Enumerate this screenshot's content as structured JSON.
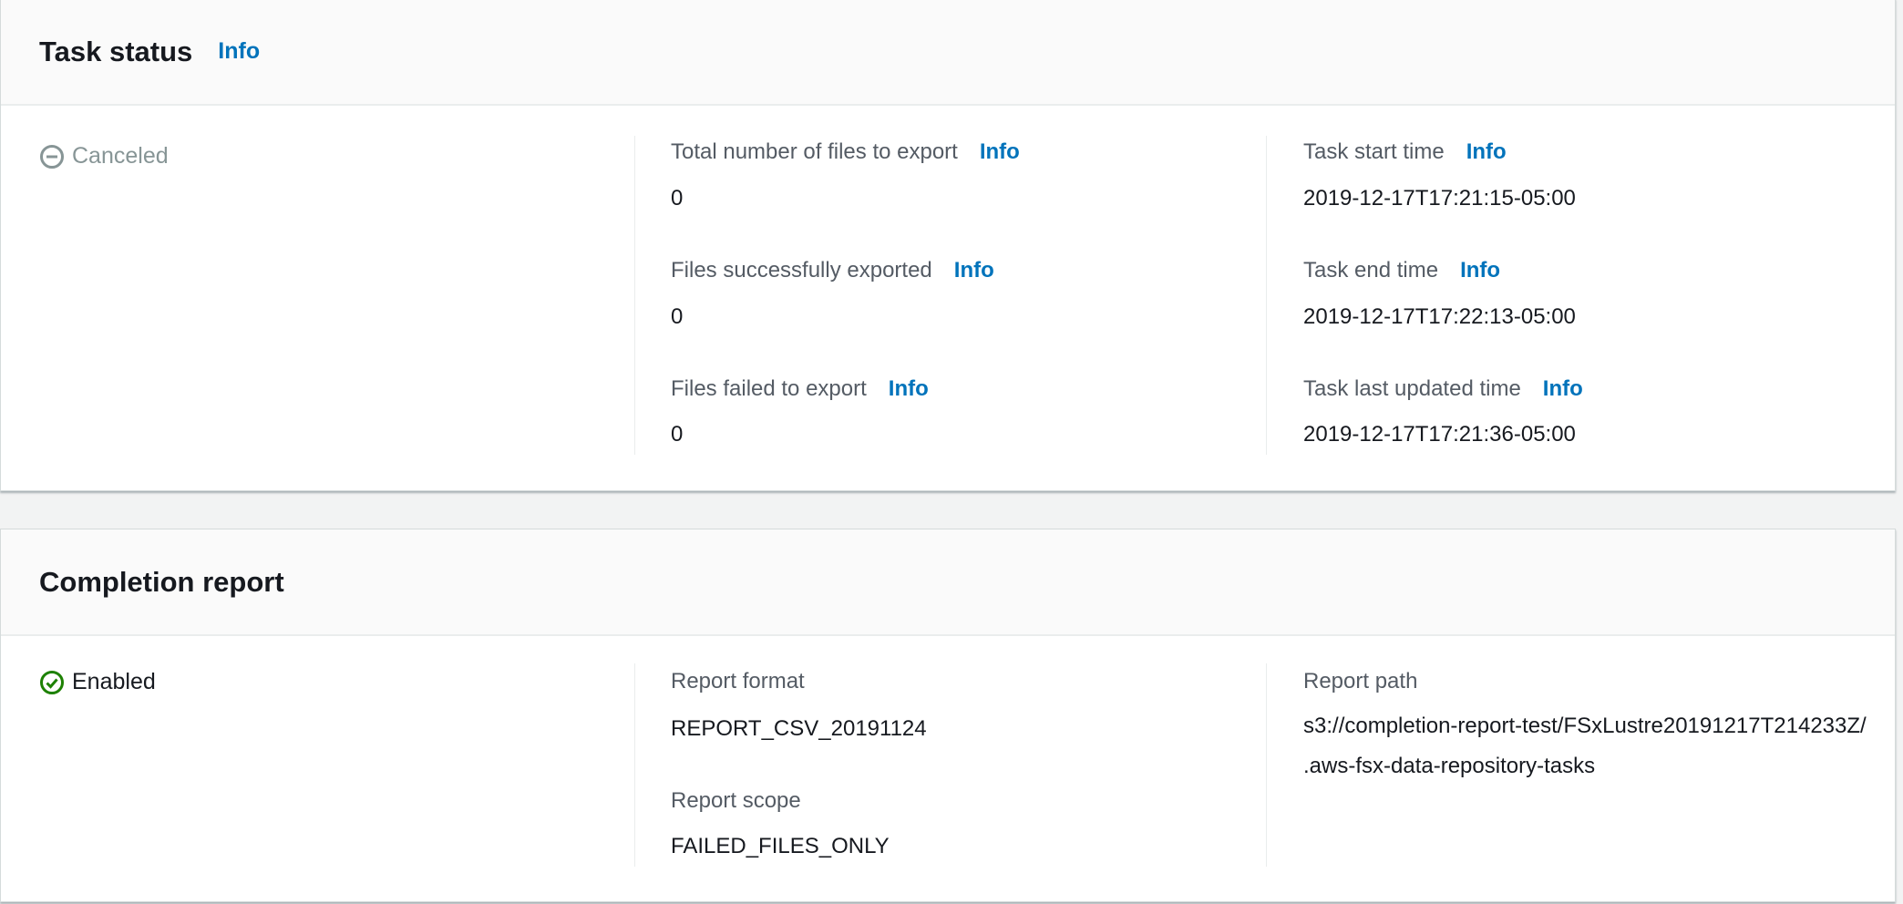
{
  "task_status": {
    "title": "Task status",
    "info": "Info",
    "status": {
      "label": "Canceled",
      "icon": "minus-circle-icon",
      "color": "#879596"
    },
    "fields": [
      {
        "label": "Total number of files to export",
        "info": "Info",
        "value": "0"
      },
      {
        "label": "Files successfully exported",
        "info": "Info",
        "value": "0"
      },
      {
        "label": "Files failed to export",
        "info": "Info",
        "value": "0"
      },
      {
        "label": "Task start time",
        "info": "Info",
        "value": "2019-12-17T17:21:15-05:00"
      },
      {
        "label": "Task end time",
        "info": "Info",
        "value": "2019-12-17T17:22:13-05:00"
      },
      {
        "label": "Task last updated time",
        "info": "Info",
        "value": "2019-12-17T17:21:36-05:00"
      }
    ]
  },
  "completion_report": {
    "title": "Completion report",
    "status": {
      "label": "Enabled",
      "icon": "check-circle-icon",
      "color": "#1d8102"
    },
    "fields": [
      {
        "label": "Report format",
        "value": "REPORT_CSV_20191124"
      },
      {
        "label": "Report scope",
        "value": "FAILED_FILES_ONLY"
      },
      {
        "label": "Report path",
        "value": "s3://completion-report-test/FSxLustre20191217T214233Z/.aws-fsx-data-repository-tasks"
      }
    ]
  },
  "colors": {
    "link": "#0073bb",
    "label": "#545b64",
    "text": "#16191f"
  }
}
